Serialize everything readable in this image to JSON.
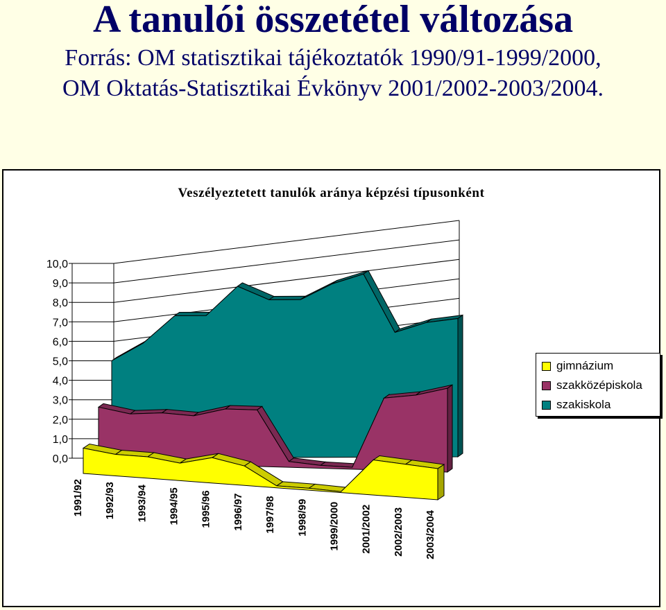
{
  "header": {
    "title": "A tanulói összetétel változása",
    "subtitle_line1": "Forrás: OM statisztikai tájékoztatók 1990/91-1999/2000,",
    "subtitle_line2": "OM Oktatás-Statisztikai Évkönyv 2001/2002-2003/2004."
  },
  "colors": {
    "page_background": "#ffffe6",
    "title_color": "#000066",
    "gimnazium": "#ffff00",
    "szakkozepiskola": "#993366",
    "szakiskola": "#008080"
  },
  "chart_data": {
    "type": "area",
    "subtype": "3d-area",
    "title": "Veszélyeztetett tanulók aránya képzési típusonként",
    "ylim": [
      0,
      10
    ],
    "y_ticks": [
      "10,0",
      "9,0",
      "8,0",
      "7,0",
      "6,0",
      "5,0",
      "4,0",
      "3,0",
      "2,0",
      "1,0",
      "0,0"
    ],
    "grid": true,
    "legend_position": "right",
    "categories": [
      "1991/92",
      "1992/93",
      "1993/94",
      "1994/95",
      "1995/96",
      "1996/97",
      "1997/98",
      "1998/99",
      "1999/2000",
      "2001/2002",
      "2002/2003",
      "2003/2004"
    ],
    "series": [
      {
        "name": "gimnázium",
        "values": [
          1.3,
          1.1,
          1.1,
          0.9,
          1.3,
          1.0,
          0.1,
          0.1,
          0.05,
          1.8,
          1.7,
          1.6
        ]
      },
      {
        "name": "szakközépiskola",
        "values": [
          2.8,
          2.5,
          2.6,
          2.5,
          2.9,
          2.9,
          0.3,
          0.15,
          0.1,
          3.7,
          3.9,
          4.3
        ]
      },
      {
        "name": "szakiskola",
        "values": [
          5.0,
          5.9,
          7.3,
          7.3,
          8.8,
          8.1,
          8.1,
          8.9,
          9.4,
          6.4,
          6.9,
          7.1
        ]
      }
    ]
  }
}
